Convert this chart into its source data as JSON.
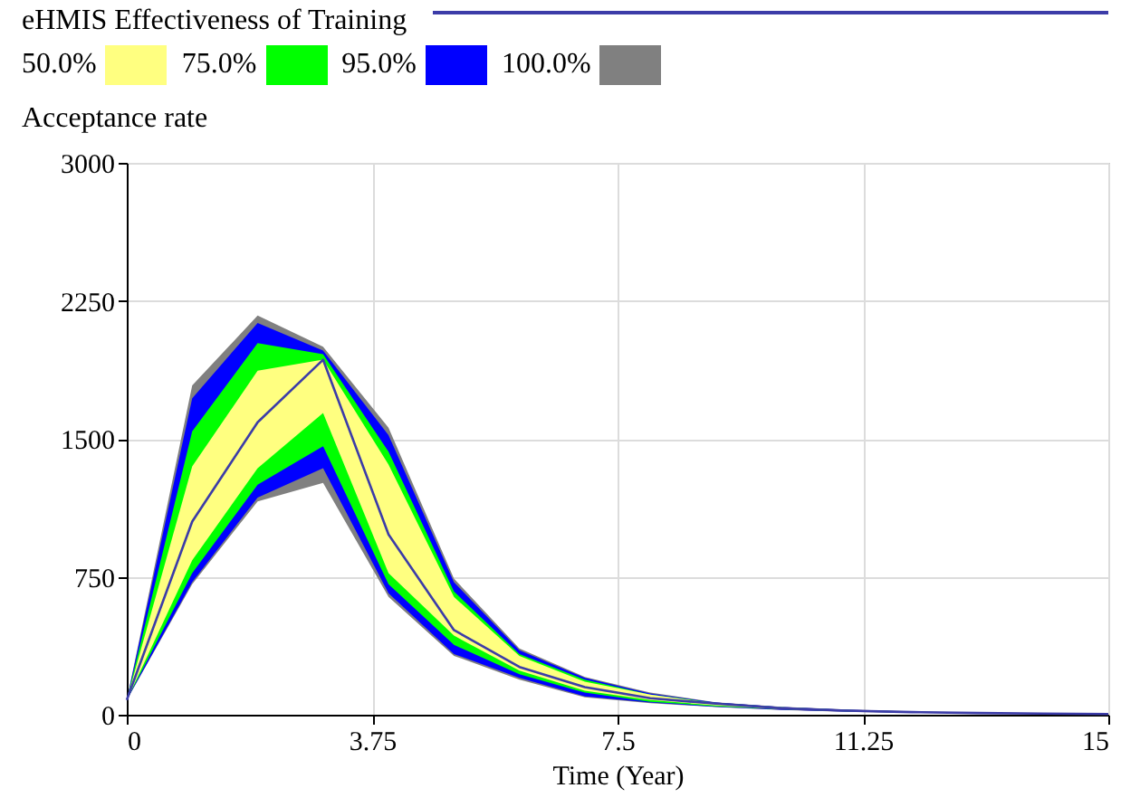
{
  "chart_data": {
    "type": "line",
    "title": "eHMIS Effectiveness of Training",
    "ylabel": "Acceptance rate",
    "xlabel": "Time (Year)",
    "x": [
      0,
      1,
      2,
      3,
      4,
      5,
      6,
      7,
      8,
      9,
      10,
      11,
      12,
      13,
      14,
      15
    ],
    "series": [
      {
        "color": "#3c3ca8",
        "values": [
          80,
          1050,
          1590,
          1930,
          980,
          460,
          260,
          150,
          90,
          60,
          35,
          22,
          14,
          9,
          6,
          4
        ]
      },
      {
        "name": "50.0%",
        "color": "#ffff80",
        "values": [
          null,
          null,
          null,
          null,
          null,
          null,
          null,
          null,
          null,
          null,
          null,
          null,
          null,
          null,
          null,
          null
        ],
        "lower": [
          80,
          840,
          1340,
          1640,
          770,
          430,
          240,
          130,
          80,
          50,
          31,
          20,
          12,
          8,
          5,
          3
        ],
        "upper": [
          80,
          1350,
          1870,
          1930,
          1360,
          640,
          320,
          180,
          110,
          60,
          40,
          25,
          16,
          10,
          6,
          4
        ]
      },
      {
        "name": "75.0%",
        "color": "#00ff00",
        "values": [
          null,
          null,
          null,
          null,
          null,
          null,
          null,
          null,
          null,
          null,
          null,
          null,
          null,
          null,
          null,
          null
        ],
        "lower": [
          80,
          770,
          1250,
          1460,
          710,
          380,
          220,
          120,
          70,
          46,
          29,
          18,
          11,
          7,
          5,
          3
        ],
        "upper": [
          80,
          1540,
          2020,
          1960,
          1430,
          670,
          330,
          190,
          110,
          64,
          41,
          26,
          17,
          11,
          7,
          4
        ]
      },
      {
        "name": "95.0%",
        "color": "#0000ff",
        "values": [
          null,
          null,
          null,
          null,
          null,
          null,
          null,
          null,
          null,
          null,
          null,
          null,
          null,
          null,
          null,
          null
        ],
        "lower": [
          80,
          720,
          1180,
          1340,
          660,
          330,
          200,
          100,
          66,
          43,
          27,
          17,
          11,
          7,
          4,
          3
        ],
        "upper": [
          80,
          1720,
          2130,
          1980,
          1520,
          720,
          350,
          200,
          115,
          66,
          42,
          27,
          17,
          11,
          7,
          5
        ]
      },
      {
        "name": "100.0%",
        "color": "#808080",
        "values": [
          null,
          null,
          null,
          null,
          null,
          null,
          null,
          null,
          null,
          null,
          null,
          null,
          null,
          null,
          null,
          null
        ],
        "lower": [
          80,
          710,
          1160,
          1260,
          640,
          320,
          190,
          95,
          63,
          42,
          26,
          16,
          10,
          7,
          4,
          3
        ],
        "upper": [
          80,
          1790,
          2170,
          2000,
          1560,
          740,
          360,
          205,
          120,
          68,
          43,
          28,
          18,
          12,
          8,
          5
        ]
      }
    ],
    "xlim": [
      0,
      15
    ],
    "xticks": [
      0,
      3.75,
      7.5,
      11.25,
      15
    ],
    "ylim": [
      0,
      3000
    ],
    "yticks": [
      0,
      750,
      1500,
      2250,
      3000
    ],
    "grid": true,
    "legend": "top"
  }
}
